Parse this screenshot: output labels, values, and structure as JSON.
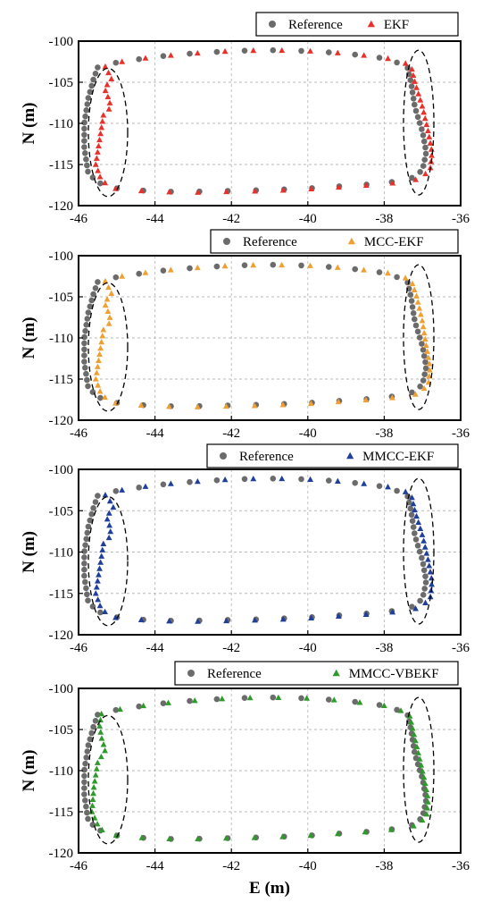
{
  "chart_data": [
    {
      "type": "scatter",
      "xlabel": "",
      "ylabel": "N (m)",
      "xlim": [
        -46,
        -36
      ],
      "ylim": [
        -120,
        -100
      ],
      "xticks": [
        -46,
        -44,
        -42,
        -40,
        -38,
        -36
      ],
      "yticks": [
        -100,
        -105,
        -110,
        -115,
        -120
      ],
      "grid": true,
      "legend_position": "top-right",
      "series": [
        {
          "name": "Reference",
          "marker": "circle",
          "color": "#6b6b6b"
        },
        {
          "name": "EKF",
          "marker": "triangle",
          "color": "#e8312a"
        }
      ],
      "annotations": [
        "dashed ellipse around left edge",
        "dashed ellipse around right edge"
      ]
    },
    {
      "type": "scatter",
      "xlabel": "",
      "ylabel": "N (m)",
      "xlim": [
        -46,
        -36
      ],
      "ylim": [
        -120,
        -100
      ],
      "xticks": [
        -46,
        -44,
        -42,
        -40,
        -38,
        -36
      ],
      "yticks": [
        -100,
        -105,
        -110,
        -115,
        -120
      ],
      "grid": true,
      "legend_position": "top-right",
      "series": [
        {
          "name": "Reference",
          "marker": "circle",
          "color": "#6b6b6b"
        },
        {
          "name": "MCC-EKF",
          "marker": "triangle",
          "color": "#f0a033"
        }
      ],
      "annotations": [
        "dashed ellipse around left edge",
        "dashed ellipse around right edge"
      ]
    },
    {
      "type": "scatter",
      "xlabel": "",
      "ylabel": "N (m)",
      "xlim": [
        -46,
        -36
      ],
      "ylim": [
        -120,
        -100
      ],
      "xticks": [
        -46,
        -44,
        -42,
        -40,
        -38,
        -36
      ],
      "yticks": [
        -100,
        -105,
        -110,
        -115,
        -120
      ],
      "grid": true,
      "legend_position": "top-right",
      "series": [
        {
          "name": "Reference",
          "marker": "circle",
          "color": "#6b6b6b"
        },
        {
          "name": "MMCC-EKF",
          "marker": "triangle",
          "color": "#1f3f9c"
        }
      ],
      "annotations": [
        "dashed ellipse around left edge",
        "dashed ellipse around right edge"
      ]
    },
    {
      "type": "scatter",
      "xlabel": "E (m)",
      "ylabel": "N (m)",
      "xlim": [
        -46,
        -36
      ],
      "ylim": [
        -120,
        -100
      ],
      "xticks": [
        -46,
        -44,
        -42,
        -40,
        -38,
        -36
      ],
      "yticks": [
        -100,
        -105,
        -110,
        -115,
        -120
      ],
      "grid": true,
      "legend_position": "top-right",
      "series": [
        {
          "name": "Reference",
          "marker": "circle",
          "color": "#6b6b6b"
        },
        {
          "name": "MMCC-VBEKF",
          "marker": "triangle",
          "color": "#2e9a2a"
        }
      ],
      "annotations": [
        "dashed ellipse around left edge",
        "dashed ellipse around right edge"
      ]
    }
  ],
  "trajectory": {
    "reference_loop": [
      [
        -45.5,
        -103.2
      ],
      [
        -45.0,
        -102.6
      ],
      [
        -44.0,
        -101.9
      ],
      [
        -43.0,
        -101.5
      ],
      [
        -42.0,
        -101.2
      ],
      [
        -41.0,
        -101.1
      ],
      [
        -40.0,
        -101.2
      ],
      [
        -39.0,
        -101.5
      ],
      [
        -38.0,
        -102.1
      ],
      [
        -37.4,
        -103.0
      ],
      [
        -37.3,
        -105.0
      ],
      [
        -37.2,
        -108.0
      ],
      [
        -37.0,
        -111.0
      ],
      [
        -36.9,
        -113.5
      ],
      [
        -37.0,
        -115.7
      ],
      [
        -37.3,
        -116.7
      ],
      [
        -38.0,
        -117.3
      ],
      [
        -39.0,
        -117.6
      ],
      [
        -40.0,
        -117.9
      ],
      [
        -41.0,
        -118.1
      ],
      [
        -42.0,
        -118.2
      ],
      [
        -43.0,
        -118.3
      ],
      [
        -44.0,
        -118.3
      ],
      [
        -45.0,
        -117.9
      ],
      [
        -45.5,
        -117.2
      ],
      [
        -45.75,
        -116.0
      ],
      [
        -45.85,
        -113.0
      ],
      [
        -45.85,
        -110.0
      ],
      [
        -45.75,
        -107.0
      ],
      [
        -45.6,
        -104.5
      ],
      [
        -45.5,
        -103.2
      ]
    ],
    "estimate_loops": [
      [
        [
          -45.3,
          -103.1
        ],
        [
          -45.0,
          -102.6
        ],
        [
          -44.0,
          -101.9
        ],
        [
          -43.0,
          -101.5
        ],
        [
          -42.0,
          -101.2
        ],
        [
          -41.0,
          -101.1
        ],
        [
          -40.0,
          -101.2
        ],
        [
          -39.0,
          -101.5
        ],
        [
          -38.0,
          -102.0
        ],
        [
          -37.3,
          -102.9
        ],
        [
          -37.2,
          -105.0
        ],
        [
          -37.0,
          -108.0
        ],
        [
          -36.85,
          -111.0
        ],
        [
          -36.75,
          -113.5
        ],
        [
          -36.8,
          -115.8
        ],
        [
          -37.2,
          -116.9
        ],
        [
          -38.0,
          -117.4
        ],
        [
          -39.0,
          -117.7
        ],
        [
          -40.0,
          -118.0
        ],
        [
          -41.0,
          -118.2
        ],
        [
          -42.0,
          -118.3
        ],
        [
          -43.0,
          -118.4
        ],
        [
          -44.0,
          -118.3
        ],
        [
          -45.0,
          -118.0
        ],
        [
          -45.4,
          -117.0
        ],
        [
          -45.55,
          -115.0
        ],
        [
          -45.45,
          -112.0
        ],
        [
          -45.35,
          -109.0
        ],
        [
          -45.15,
          -108.0
        ],
        [
          -45.25,
          -106.5
        ],
        [
          -45.35,
          -105.5
        ],
        [
          -45.1,
          -105.0
        ],
        [
          -45.2,
          -104.0
        ],
        [
          -45.3,
          -103.1
        ]
      ],
      [
        [
          -45.3,
          -103.1
        ],
        [
          -45.0,
          -102.6
        ],
        [
          -44.0,
          -101.9
        ],
        [
          -43.0,
          -101.5
        ],
        [
          -42.0,
          -101.2
        ],
        [
          -41.0,
          -101.1
        ],
        [
          -40.0,
          -101.2
        ],
        [
          -39.0,
          -101.5
        ],
        [
          -38.0,
          -102.0
        ],
        [
          -37.3,
          -102.9
        ],
        [
          -37.15,
          -105.0
        ],
        [
          -37.0,
          -108.0
        ],
        [
          -36.9,
          -111.0
        ],
        [
          -36.8,
          -113.5
        ],
        [
          -36.85,
          -115.8
        ],
        [
          -37.2,
          -116.9
        ],
        [
          -38.0,
          -117.4
        ],
        [
          -39.0,
          -117.7
        ],
        [
          -40.0,
          -118.0
        ],
        [
          -41.0,
          -118.2
        ],
        [
          -42.0,
          -118.3
        ],
        [
          -43.0,
          -118.4
        ],
        [
          -44.0,
          -118.3
        ],
        [
          -45.0,
          -118.0
        ],
        [
          -45.4,
          -117.0
        ],
        [
          -45.55,
          -115.0
        ],
        [
          -45.45,
          -112.0
        ],
        [
          -45.35,
          -109.0
        ],
        [
          -45.15,
          -108.0
        ],
        [
          -45.25,
          -106.5
        ],
        [
          -45.35,
          -105.5
        ],
        [
          -45.1,
          -105.0
        ],
        [
          -45.2,
          -104.0
        ],
        [
          -45.3,
          -103.1
        ]
      ],
      [
        [
          -45.3,
          -103.1
        ],
        [
          -45.0,
          -102.6
        ],
        [
          -44.0,
          -101.9
        ],
        [
          -43.0,
          -101.5
        ],
        [
          -42.0,
          -101.2
        ],
        [
          -41.0,
          -101.1
        ],
        [
          -40.0,
          -101.2
        ],
        [
          -39.0,
          -101.5
        ],
        [
          -38.0,
          -102.0
        ],
        [
          -37.3,
          -102.9
        ],
        [
          -37.2,
          -105.0
        ],
        [
          -37.0,
          -108.0
        ],
        [
          -36.85,
          -111.0
        ],
        [
          -36.75,
          -113.5
        ],
        [
          -36.8,
          -115.8
        ],
        [
          -37.2,
          -116.9
        ],
        [
          -38.0,
          -117.4
        ],
        [
          -39.0,
          -117.7
        ],
        [
          -40.0,
          -118.0
        ],
        [
          -41.0,
          -118.2
        ],
        [
          -42.0,
          -118.3
        ],
        [
          -43.0,
          -118.4
        ],
        [
          -44.0,
          -118.3
        ],
        [
          -45.0,
          -118.0
        ],
        [
          -45.4,
          -117.0
        ],
        [
          -45.55,
          -115.0
        ],
        [
          -45.45,
          -112.0
        ],
        [
          -45.35,
          -109.0
        ],
        [
          -45.15,
          -108.0
        ],
        [
          -45.2,
          -106.5
        ],
        [
          -45.3,
          -105.5
        ],
        [
          -45.05,
          -105.0
        ],
        [
          -45.15,
          -104.0
        ],
        [
          -45.3,
          -103.1
        ]
      ],
      [
        [
          -45.4,
          -103.1
        ],
        [
          -45.0,
          -102.6
        ],
        [
          -44.0,
          -101.9
        ],
        [
          -43.0,
          -101.5
        ],
        [
          -42.0,
          -101.2
        ],
        [
          -41.0,
          -101.1
        ],
        [
          -40.0,
          -101.2
        ],
        [
          -39.0,
          -101.5
        ],
        [
          -38.0,
          -102.1
        ],
        [
          -37.35,
          -103.0
        ],
        [
          -37.25,
          -105.0
        ],
        [
          -37.1,
          -108.0
        ],
        [
          -36.95,
          -111.0
        ],
        [
          -36.85,
          -113.5
        ],
        [
          -36.9,
          -115.7
        ],
        [
          -37.25,
          -116.8
        ],
        [
          -38.0,
          -117.3
        ],
        [
          -39.0,
          -117.6
        ],
        [
          -40.0,
          -117.9
        ],
        [
          -41.0,
          -118.1
        ],
        [
          -42.0,
          -118.2
        ],
        [
          -43.0,
          -118.3
        ],
        [
          -44.0,
          -118.3
        ],
        [
          -45.0,
          -117.9
        ],
        [
          -45.45,
          -117.1
        ],
        [
          -45.65,
          -115.0
        ],
        [
          -45.6,
          -112.0
        ],
        [
          -45.5,
          -109.0
        ],
        [
          -45.3,
          -107.5
        ],
        [
          -45.4,
          -106.0
        ],
        [
          -45.45,
          -104.5
        ],
        [
          -45.4,
          -103.1
        ]
      ]
    ]
  }
}
